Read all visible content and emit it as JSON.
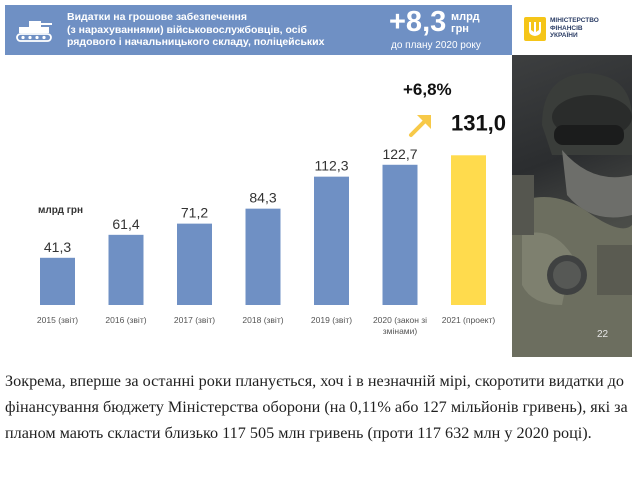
{
  "header": {
    "title_lines": [
      "Видатки на грошове забезпечення",
      "(з нарахуваннями) військовослужбовців, осіб",
      "рядового і начальницького складу, поліцейських"
    ],
    "big_delta": "+8,3",
    "big_unit_line1": "млрд",
    "big_unit_line2": "грн",
    "sub": "до плану 2020 року",
    "band_color": "#6f90c4"
  },
  "logo": {
    "line1": "МІНІСТЕРСТВО",
    "line2": "ФІНАНСІВ",
    "line3": "УКРАЇНИ",
    "emblem_color": "#f5c518"
  },
  "photo": {
    "page_number": "22"
  },
  "chart_data": {
    "type": "bar",
    "unit_label": "млрд грн",
    "categories": [
      "2015 (звіт)",
      "2016 (звіт)",
      "2017 (звіт)",
      "2018 (звіт)",
      "2019 (звіт)",
      "2020 (закон зі змінами)",
      "2021 (проект)"
    ],
    "category_lines": [
      [
        "2015 (звіт)"
      ],
      [
        "2016 (звіт)"
      ],
      [
        "2017 (звіт)"
      ],
      [
        "2018 (звіт)"
      ],
      [
        "2019 (звіт)"
      ],
      [
        "2020 (закон зі",
        "змінами)"
      ],
      [
        "2021 (проект)"
      ]
    ],
    "values": [
      41.3,
      61.4,
      71.2,
      84.3,
      112.3,
      122.7,
      131.0
    ],
    "value_labels": [
      "41,3",
      "61,4",
      "71,2",
      "84,3",
      "112,3",
      "122,7",
      "131,0"
    ],
    "ylim": [
      0,
      140
    ],
    "colors": {
      "bar": "#6f90c4",
      "highlight": "#ffdb4d",
      "label": "#333333"
    },
    "highlight_index": 6,
    "annotation": {
      "text": "+6,8%",
      "arrow_color": "#f7c948"
    }
  },
  "caption": {
    "text": "Зокрема, вперше за останні роки планується, хоч і в незначній мірі, скоротити видатки до фінансування бюджету Міністерства оборони (на 0,11% або 127 мільйонів гривень), які за планом мають скласти близько 117 505 млн гривень (проти 117 632 млн у 2020 році)."
  }
}
